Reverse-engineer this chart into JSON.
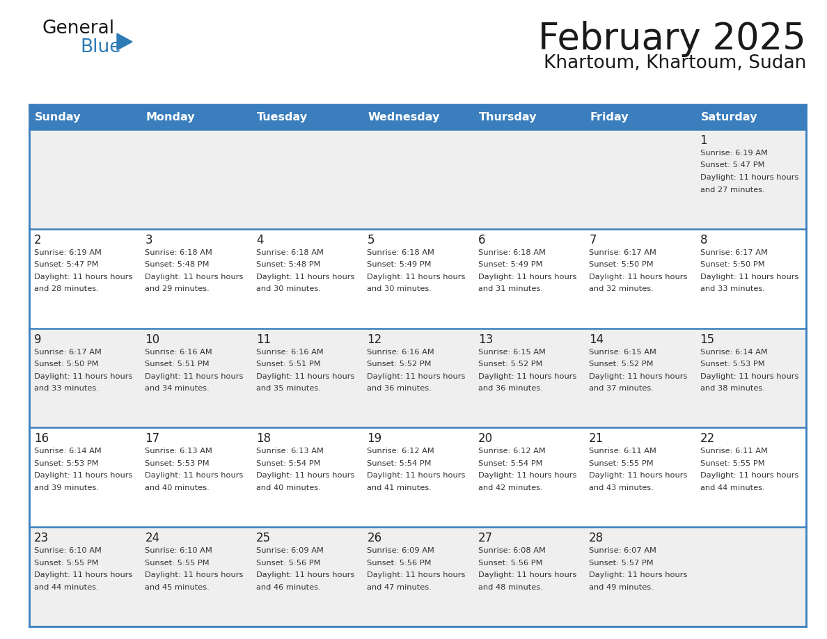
{
  "title": "February 2025",
  "subtitle": "Khartoum, Khartoum, Sudan",
  "days_of_week": [
    "Sunday",
    "Monday",
    "Tuesday",
    "Wednesday",
    "Thursday",
    "Friday",
    "Saturday"
  ],
  "header_bg": "#3A7EBD",
  "header_text_color": "#FFFFFF",
  "row_bg_light": "#EFEFEF",
  "row_bg_white": "#FFFFFF",
  "cell_text_color": "#333333",
  "day_num_color": "#222222",
  "border_color": "#3A7EBD",
  "calendar_data": [
    [
      {
        "day": 0,
        "sunrise": "",
        "sunset": "",
        "daylight": ""
      },
      {
        "day": 0,
        "sunrise": "",
        "sunset": "",
        "daylight": ""
      },
      {
        "day": 0,
        "sunrise": "",
        "sunset": "",
        "daylight": ""
      },
      {
        "day": 0,
        "sunrise": "",
        "sunset": "",
        "daylight": ""
      },
      {
        "day": 0,
        "sunrise": "",
        "sunset": "",
        "daylight": ""
      },
      {
        "day": 0,
        "sunrise": "",
        "sunset": "",
        "daylight": ""
      },
      {
        "day": 1,
        "sunrise": "6:19 AM",
        "sunset": "5:47 PM",
        "daylight": "11 hours and 27 minutes."
      }
    ],
    [
      {
        "day": 2,
        "sunrise": "6:19 AM",
        "sunset": "5:47 PM",
        "daylight": "11 hours and 28 minutes."
      },
      {
        "day": 3,
        "sunrise": "6:18 AM",
        "sunset": "5:48 PM",
        "daylight": "11 hours and 29 minutes."
      },
      {
        "day": 4,
        "sunrise": "6:18 AM",
        "sunset": "5:48 PM",
        "daylight": "11 hours and 30 minutes."
      },
      {
        "day": 5,
        "sunrise": "6:18 AM",
        "sunset": "5:49 PM",
        "daylight": "11 hours and 30 minutes."
      },
      {
        "day": 6,
        "sunrise": "6:18 AM",
        "sunset": "5:49 PM",
        "daylight": "11 hours and 31 minutes."
      },
      {
        "day": 7,
        "sunrise": "6:17 AM",
        "sunset": "5:50 PM",
        "daylight": "11 hours and 32 minutes."
      },
      {
        "day": 8,
        "sunrise": "6:17 AM",
        "sunset": "5:50 PM",
        "daylight": "11 hours and 33 minutes."
      }
    ],
    [
      {
        "day": 9,
        "sunrise": "6:17 AM",
        "sunset": "5:50 PM",
        "daylight": "11 hours and 33 minutes."
      },
      {
        "day": 10,
        "sunrise": "6:16 AM",
        "sunset": "5:51 PM",
        "daylight": "11 hours and 34 minutes."
      },
      {
        "day": 11,
        "sunrise": "6:16 AM",
        "sunset": "5:51 PM",
        "daylight": "11 hours and 35 minutes."
      },
      {
        "day": 12,
        "sunrise": "6:16 AM",
        "sunset": "5:52 PM",
        "daylight": "11 hours and 36 minutes."
      },
      {
        "day": 13,
        "sunrise": "6:15 AM",
        "sunset": "5:52 PM",
        "daylight": "11 hours and 36 minutes."
      },
      {
        "day": 14,
        "sunrise": "6:15 AM",
        "sunset": "5:52 PM",
        "daylight": "11 hours and 37 minutes."
      },
      {
        "day": 15,
        "sunrise": "6:14 AM",
        "sunset": "5:53 PM",
        "daylight": "11 hours and 38 minutes."
      }
    ],
    [
      {
        "day": 16,
        "sunrise": "6:14 AM",
        "sunset": "5:53 PM",
        "daylight": "11 hours and 39 minutes."
      },
      {
        "day": 17,
        "sunrise": "6:13 AM",
        "sunset": "5:53 PM",
        "daylight": "11 hours and 40 minutes."
      },
      {
        "day": 18,
        "sunrise": "6:13 AM",
        "sunset": "5:54 PM",
        "daylight": "11 hours and 40 minutes."
      },
      {
        "day": 19,
        "sunrise": "6:12 AM",
        "sunset": "5:54 PM",
        "daylight": "11 hours and 41 minutes."
      },
      {
        "day": 20,
        "sunrise": "6:12 AM",
        "sunset": "5:54 PM",
        "daylight": "11 hours and 42 minutes."
      },
      {
        "day": 21,
        "sunrise": "6:11 AM",
        "sunset": "5:55 PM",
        "daylight": "11 hours and 43 minutes."
      },
      {
        "day": 22,
        "sunrise": "6:11 AM",
        "sunset": "5:55 PM",
        "daylight": "11 hours and 44 minutes."
      }
    ],
    [
      {
        "day": 23,
        "sunrise": "6:10 AM",
        "sunset": "5:55 PM",
        "daylight": "11 hours and 44 minutes."
      },
      {
        "day": 24,
        "sunrise": "6:10 AM",
        "sunset": "5:55 PM",
        "daylight": "11 hours and 45 minutes."
      },
      {
        "day": 25,
        "sunrise": "6:09 AM",
        "sunset": "5:56 PM",
        "daylight": "11 hours and 46 minutes."
      },
      {
        "day": 26,
        "sunrise": "6:09 AM",
        "sunset": "5:56 PM",
        "daylight": "11 hours and 47 minutes."
      },
      {
        "day": 27,
        "sunrise": "6:08 AM",
        "sunset": "5:56 PM",
        "daylight": "11 hours and 48 minutes."
      },
      {
        "day": 28,
        "sunrise": "6:07 AM",
        "sunset": "5:57 PM",
        "daylight": "11 hours and 49 minutes."
      },
      {
        "day": 0,
        "sunrise": "",
        "sunset": "",
        "daylight": ""
      }
    ]
  ],
  "logo_text1": "General",
  "logo_text2": "Blue",
  "logo_text1_color": "#1a1a1a",
  "logo_text2_color": "#2E7BB5",
  "logo_triangle_color": "#2E7BB5"
}
